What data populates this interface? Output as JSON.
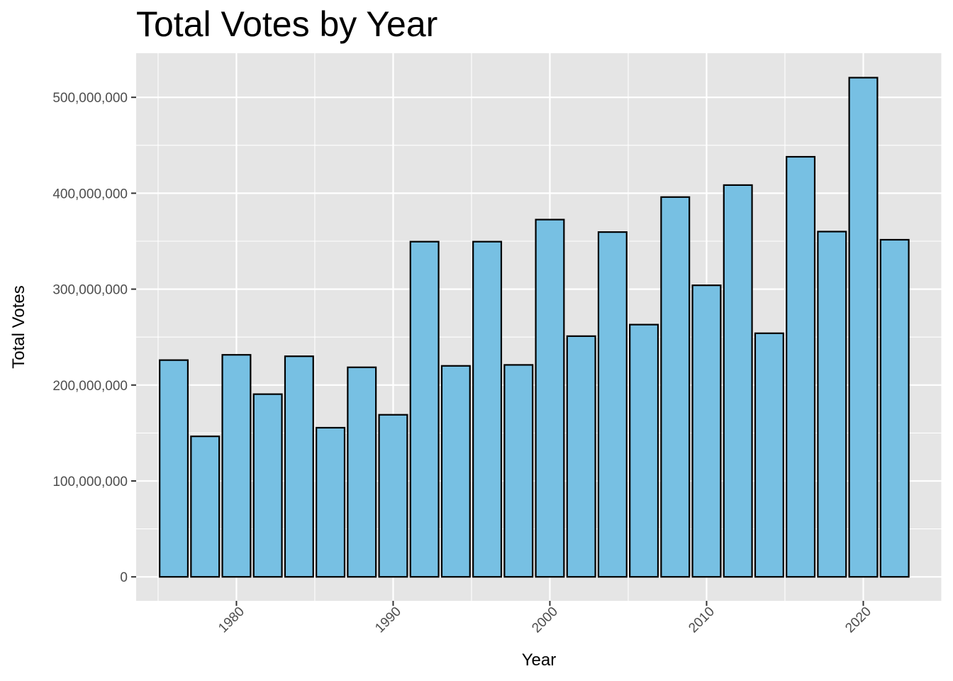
{
  "chart_data": {
    "type": "bar",
    "title": "Total Votes by Year",
    "xlabel": "Year",
    "ylabel": "Total Votes",
    "x": [
      1976,
      1978,
      1980,
      1982,
      1984,
      1986,
      1988,
      1990,
      1992,
      1994,
      1996,
      1998,
      2000,
      2002,
      2004,
      2006,
      2008,
      2010,
      2012,
      2014,
      2016,
      2018,
      2020,
      2022
    ],
    "values": [
      226000000,
      146500000,
      231500000,
      190500000,
      230000000,
      155500000,
      218500000,
      169000000,
      349500000,
      220000000,
      349500000,
      221000000,
      372500000,
      251000000,
      359500000,
      263000000,
      396000000,
      304000000,
      408500000,
      254000000,
      438000000,
      360000000,
      520500000,
      351500000
    ],
    "xlim": [
      1973.6,
      2025.0
    ],
    "ylim": [
      -25000000,
      546000000
    ],
    "x_ticks": [
      1980,
      1990,
      2000,
      2010,
      2020
    ],
    "x_tick_labels": [
      "1980",
      "1990",
      "2000",
      "2010",
      "2020"
    ],
    "y_ticks": [
      0,
      100000000,
      200000000,
      300000000,
      400000000,
      500000000
    ],
    "y_tick_labels": [
      "0",
      "100,000,000",
      "200,000,000",
      "300,000,000",
      "400,000,000",
      "500,000,000"
    ],
    "grid": true,
    "legend": "none",
    "colors": {
      "bar_fill": "#77c0e3",
      "bar_stroke": "#000000",
      "panel_background": "#e5e5e5",
      "grid_line": "#ffffff",
      "tick_text": "#4d4d4d",
      "tick_mark": "#333333"
    }
  }
}
